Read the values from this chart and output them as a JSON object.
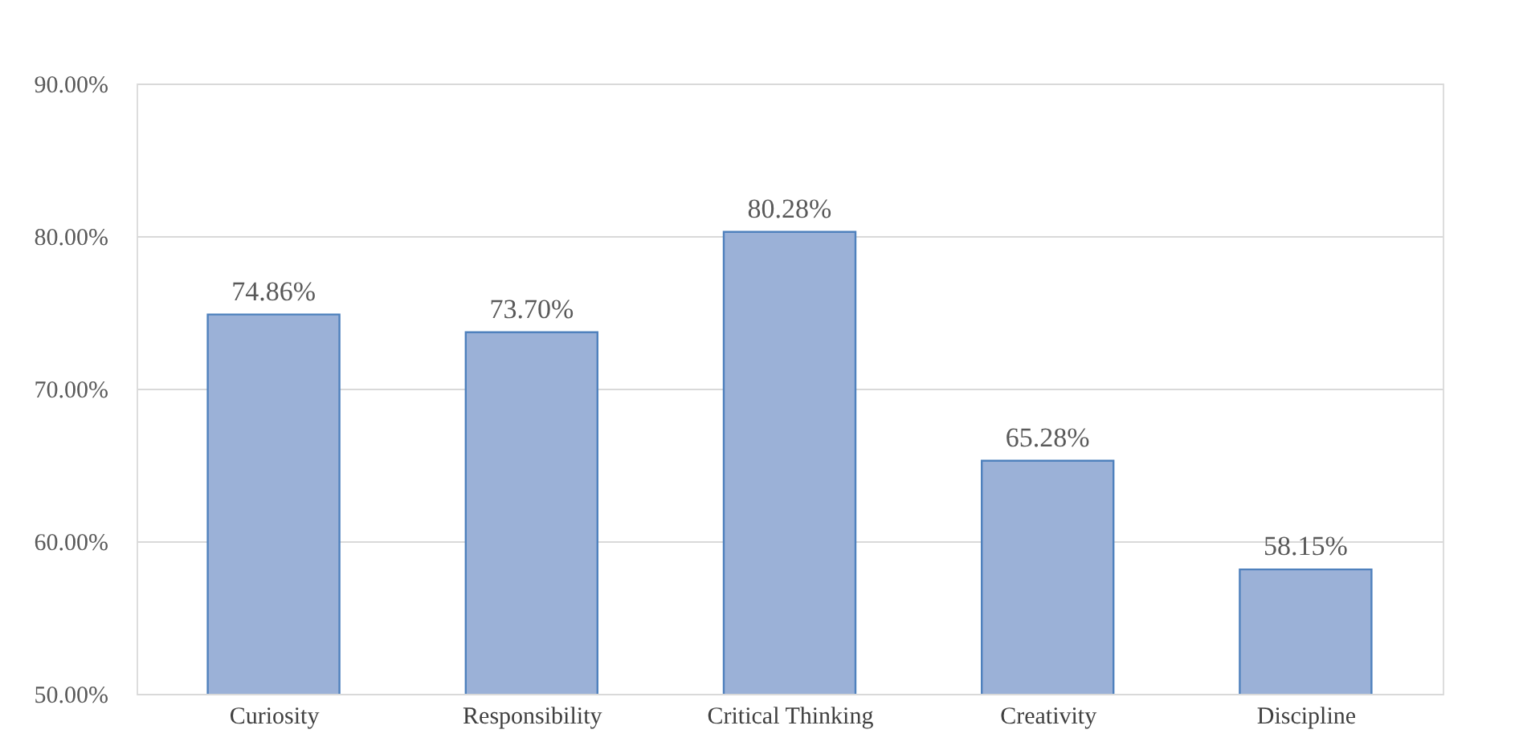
{
  "chart_data": {
    "type": "bar",
    "categories": [
      "Curiosity",
      "Responsibility",
      "Critical Thinking",
      "Creativity",
      "Discipline"
    ],
    "values": [
      74.86,
      73.7,
      80.28,
      65.28,
      58.15
    ],
    "color": "#9bb1d7",
    "value_labels": [
      "74.86%",
      "73.70%",
      "80.28%",
      "65.28%",
      "58.15%"
    ],
    "ylim": [
      50,
      90
    ],
    "yticks": [
      {
        "value": 50,
        "label": "50.00%"
      },
      {
        "value": 60,
        "label": "60.00%"
      },
      {
        "value": 70,
        "label": "70.00%"
      },
      {
        "value": 80,
        "label": "80.00%"
      },
      {
        "value": 90,
        "label": "90.00%"
      }
    ],
    "grid": "y"
  }
}
